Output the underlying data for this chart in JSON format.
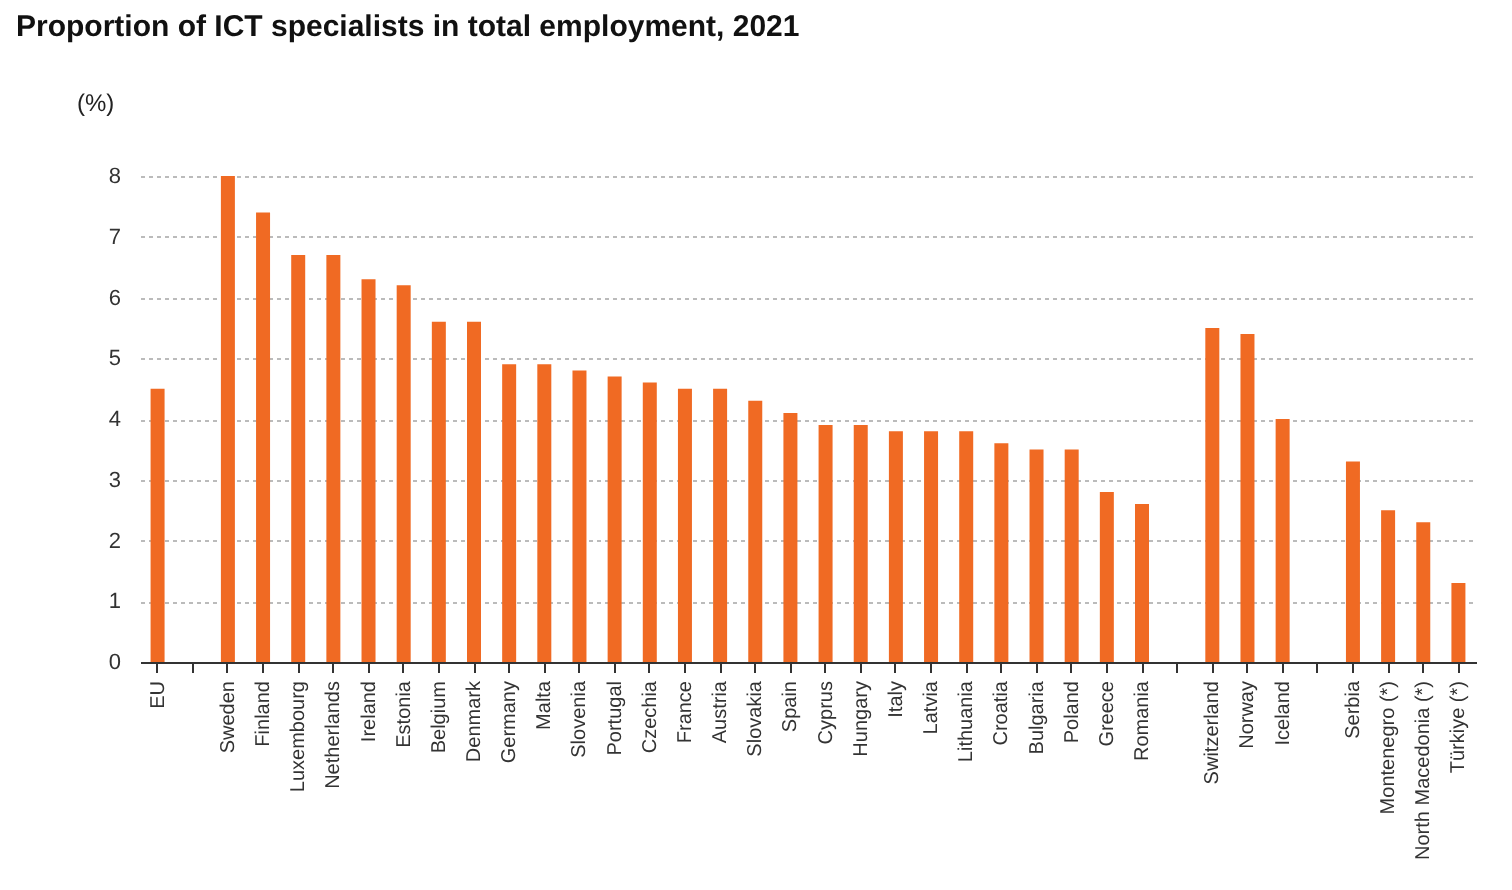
{
  "chart_data": {
    "type": "bar",
    "title": "Proportion of ICT specialists in total employment, 2021",
    "ylabel": "(%)",
    "categories": [
      "EU",
      null,
      "Sweden",
      "Finland",
      "Luxembourg",
      "Netherlands",
      "Ireland",
      "Estonia",
      "Belgium",
      "Denmark",
      "Germany",
      "Malta",
      "Slovenia",
      "Portugal",
      "Czechia",
      "France",
      "Austria",
      "Slovakia",
      "Spain",
      "Cyprus",
      "Hungary",
      "Italy",
      "Latvia",
      "Lithuania",
      "Croatia",
      "Bulgaria",
      "Poland",
      "Greece",
      "Romania",
      null,
      "Switzerland",
      "Norway",
      "Iceland",
      null,
      "Serbia",
      "Montenegro (*)",
      "North Macedonia (*)",
      "Türkiye (*)"
    ],
    "series": [
      {
        "color": "#f06a23",
        "values": [
          4.5,
          null,
          8.0,
          7.4,
          6.7,
          6.7,
          6.3,
          6.2,
          5.6,
          5.6,
          4.9,
          4.9,
          4.8,
          4.7,
          4.6,
          4.5,
          4.5,
          4.3,
          4.1,
          3.9,
          3.9,
          3.8,
          3.8,
          3.8,
          3.6,
          3.5,
          3.5,
          2.8,
          2.6,
          null,
          5.5,
          5.4,
          4.0,
          null,
          3.3,
          2.5,
          2.3,
          1.3
        ]
      }
    ],
    "ylim": [
      0,
      8
    ],
    "yticks": [
      0,
      1,
      2,
      3,
      4,
      5,
      6,
      7,
      8
    ],
    "grid": "y"
  }
}
